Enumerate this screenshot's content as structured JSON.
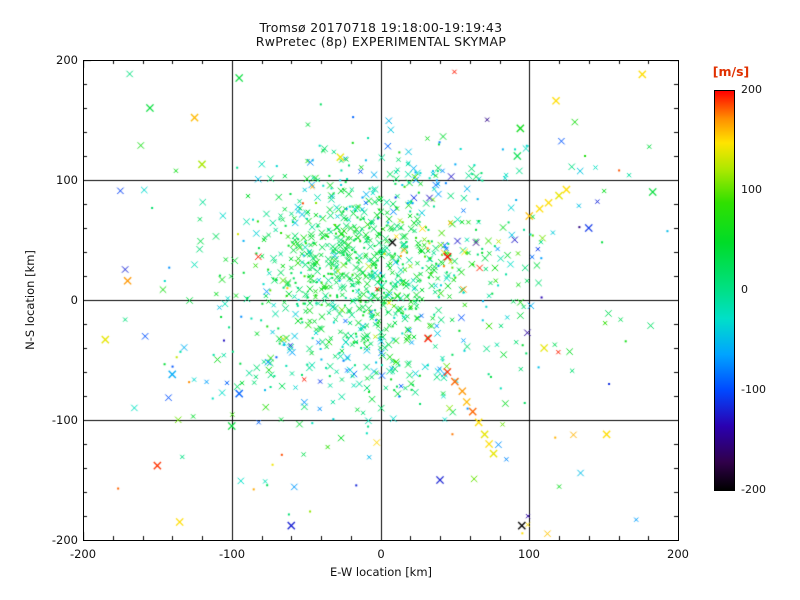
{
  "chart_data": {
    "type": "scatter",
    "title": "Tromsø 20170718 19:18:00-19:19:43",
    "subtitle": "RwPretec (8p) EXPERIMENTAL SKYMAP",
    "xlabel": "E-W location [km]",
    "ylabel": "N-S location [km]",
    "xlim": [
      -200,
      200
    ],
    "ylim": [
      -200,
      200
    ],
    "xticks": [
      -200,
      -100,
      0,
      100,
      200
    ],
    "yticks": [
      200,
      100,
      0,
      -100,
      -200
    ],
    "grid": true,
    "minor_tick_interval": 20,
    "marker": "x",
    "axis_color": "#000000",
    "point_seed": 7,
    "colorbar": {
      "label": "[m/s]",
      "label_color": "#e03000",
      "min": -200,
      "max": 200,
      "ticks": [
        200,
        100,
        0,
        -100,
        -200
      ],
      "stops": [
        {
          "t": 0.0,
          "c": "#000000"
        },
        {
          "t": 0.07,
          "c": "#30004a"
        },
        {
          "t": 0.16,
          "c": "#2a00b0"
        },
        {
          "t": 0.25,
          "c": "#0048ff"
        },
        {
          "t": 0.34,
          "c": "#00a4ff"
        },
        {
          "t": 0.43,
          "c": "#00e0c8"
        },
        {
          "t": 0.5,
          "c": "#00e087"
        },
        {
          "t": 0.62,
          "c": "#00dc28"
        },
        {
          "t": 0.72,
          "c": "#30e000"
        },
        {
          "t": 0.8,
          "c": "#a8e800"
        },
        {
          "t": 0.87,
          "c": "#ffe400"
        },
        {
          "t": 0.93,
          "c": "#ff9000"
        },
        {
          "t": 1.0,
          "c": "#ff0000"
        }
      ]
    },
    "clusters": [
      {
        "n": 520,
        "dist": "gauss",
        "cx": -12,
        "cy": 28,
        "sx": 30,
        "sy": 32,
        "v_mean": 35,
        "v_sd": 25
      },
      {
        "n": 300,
        "dist": "gauss",
        "cx": -5,
        "cy": 12,
        "sx": 65,
        "sy": 55,
        "v_mean": 5,
        "v_sd": 45
      },
      {
        "n": 140,
        "dist": "gauss",
        "cx": -25,
        "cy": -45,
        "sx": 40,
        "sy": 26,
        "v_mean": -15,
        "v_sd": 40
      },
      {
        "n": 110,
        "dist": "gauss",
        "cx": 10,
        "cy": 95,
        "sx": 55,
        "sy": 22,
        "v_mean": -35,
        "v_sd": 45
      },
      {
        "n": 45,
        "dist": "gauss",
        "cx": 40,
        "cy": 40,
        "sx": 18,
        "sy": 16,
        "v_mean": 110,
        "v_sd": 45
      },
      {
        "n": 95,
        "dist": "uniform",
        "x0": -185,
        "x1": 185,
        "y0": -195,
        "y1": 195,
        "v_min": -160,
        "v_max": 200
      }
    ],
    "notable_points": [
      [
        100,
        70,
        160
      ],
      [
        107,
        76,
        150
      ],
      [
        113,
        81,
        150
      ],
      [
        120,
        87,
        140
      ],
      [
        125,
        92,
        150
      ],
      [
        45,
        -60,
        190
      ],
      [
        50,
        -68,
        180
      ],
      [
        55,
        -76,
        170
      ],
      [
        58,
        -85,
        160
      ],
      [
        62,
        -93,
        180
      ],
      [
        66,
        -102,
        150
      ],
      [
        70,
        -112,
        140
      ],
      [
        73,
        -120,
        150
      ],
      [
        76,
        -128,
        140
      ],
      [
        32,
        -32,
        195
      ],
      [
        45,
        36,
        200
      ],
      [
        118,
        166,
        150
      ],
      [
        176,
        188,
        150
      ],
      [
        94,
        143,
        60
      ],
      [
        92,
        120,
        30
      ],
      [
        -125,
        152,
        160
      ],
      [
        -120,
        113,
        120
      ],
      [
        -155,
        160,
        40
      ],
      [
        -95,
        185,
        40
      ],
      [
        -185,
        -33,
        140
      ],
      [
        -150,
        -138,
        190
      ],
      [
        -95,
        -78,
        -90
      ],
      [
        -140,
        -62,
        -60
      ],
      [
        -135,
        -185,
        150
      ],
      [
        -60,
        -188,
        -120
      ],
      [
        95,
        -188,
        -200
      ],
      [
        40,
        -150,
        -120
      ],
      [
        152,
        -112,
        150
      ],
      [
        183,
        90,
        40
      ],
      [
        140,
        60,
        -110
      ],
      [
        -27,
        119,
        140
      ],
      [
        -170,
        16,
        170
      ],
      [
        8,
        48,
        -200
      ],
      [
        110,
        -40,
        140
      ],
      [
        -100,
        -105,
        40
      ]
    ]
  }
}
